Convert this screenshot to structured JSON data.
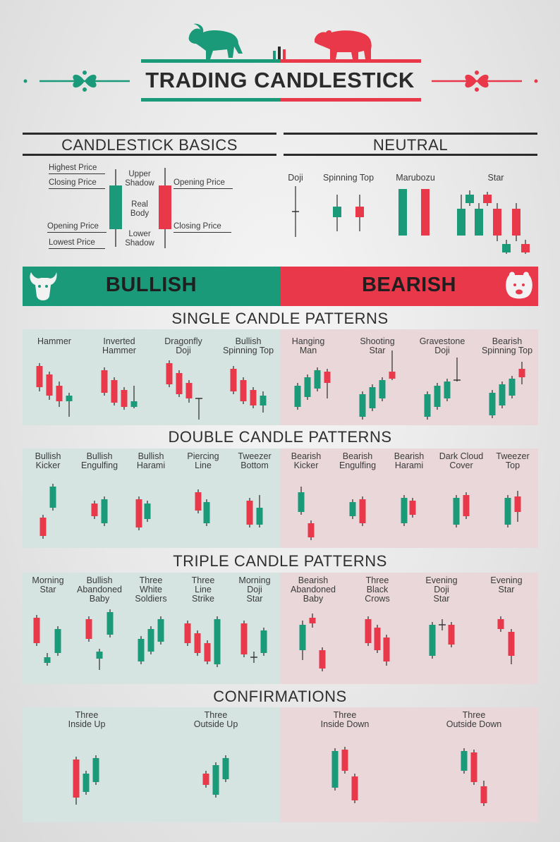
{
  "title": "TRADING CANDLESTICK",
  "colors": {
    "bull": "#1b9a7a",
    "bear": "#e8384a",
    "dark": "#2b2b2b"
  },
  "basics": {
    "heading": "CANDLESTICK BASICS",
    "highest_price": "Highest Price",
    "closing_price_left": "Closing Price",
    "opening_price_left": "Opening Price",
    "lowest_price": "Lowest Price",
    "upper_shadow": "Upper\nShadow",
    "real_body": "Real\nBody",
    "lower_shadow": "Lower\nShadow",
    "opening_price_right": "Opening Price",
    "closing_price_right": "Closing Price"
  },
  "neutral": {
    "heading": "NEUTRAL",
    "items": [
      "Doji",
      "Spinning Top",
      "Marubozu",
      "Star"
    ]
  },
  "bullish_label": "BULLISH",
  "bearish_label": "BEARISH",
  "single": {
    "heading": "SINGLE CANDLE PATTERNS",
    "items": [
      "Hammer",
      "Inverted\nHammer",
      "Dragonfly\nDoji",
      "Bullish\nSpinning Top",
      "Hanging\nMan",
      "Shooting\nStar",
      "Gravestone\nDoji",
      "Bearish\nSpinning Top"
    ]
  },
  "double": {
    "heading": "DOUBLE CANDLE PATTERNS",
    "items": [
      "Bullish\nKicker",
      "Bullish\nEngulfing",
      "Bullish\nHarami",
      "Piercing\nLine",
      "Tweezer\nBottom",
      "Bearish\nKicker",
      "Bearish\nEngulfing",
      "Bearish\nHarami",
      "Dark Cloud\nCover",
      "Tweezer\nTop"
    ]
  },
  "triple": {
    "heading": "TRIPLE CANDLE PATTERNS",
    "items": [
      "Morning\nStar",
      "Bullish\nAbandoned\nBaby",
      "Three\nWhite\nSoldiers",
      "Three\nLine\nStrike",
      "Morning\nDoji\nStar",
      "Bearish\nAbandoned\nBaby",
      "Three\nBlack\nCrows",
      "Evening\nDoji\nStar",
      "Evening\nStar"
    ]
  },
  "confirm": {
    "heading": "CONFIRMATIONS",
    "items": [
      "Three\nInside Up",
      "Three\nOutside Up",
      "Three\nInside Down",
      "Three\nOutside Down"
    ]
  }
}
